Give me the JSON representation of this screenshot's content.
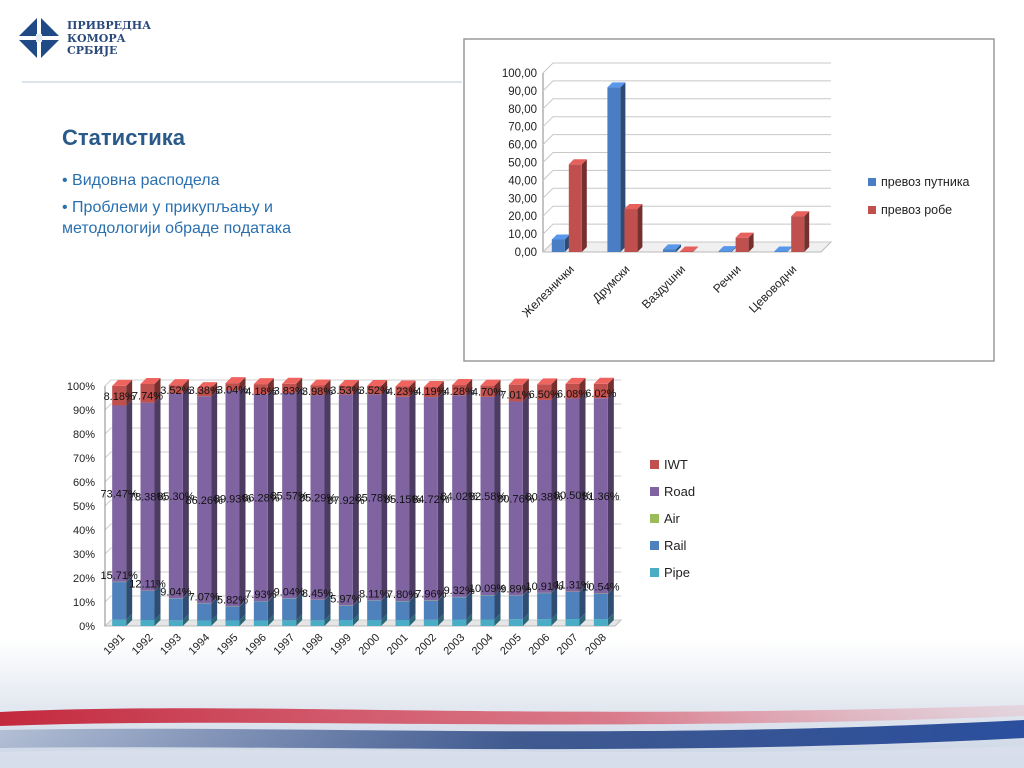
{
  "header": {
    "logo_lines": [
      "ПРИВРЕДНА",
      "КОМОРА",
      "СРБИЈЕ"
    ]
  },
  "slide": {
    "title": "Статистика",
    "bullets": [
      "• Видовна расподела",
      "• Проблеми у прикупљању и методологији обраде података"
    ]
  },
  "colors": {
    "title": "#2a5a8a",
    "bullet": "#2a6fae",
    "stripe_red": "#c0142a",
    "stripe_blue": "#1c3a7a"
  },
  "chart_data": [
    {
      "type": "bar",
      "categories": [
        "Железнички",
        "Друмски",
        "Ваздушни",
        "Речни",
        "Цевоводни"
      ],
      "series": [
        {
          "name": "превоз путника",
          "color": "#4a7ec4",
          "values": [
            7,
            92,
            1.5,
            0.5,
            0.3
          ]
        },
        {
          "name": "превоз робе",
          "color": "#c0504d",
          "values": [
            49,
            24,
            0.3,
            8,
            20
          ]
        }
      ],
      "ylim": [
        0,
        100
      ],
      "yticks": [
        "0,00",
        "10,00",
        "20,00",
        "30,00",
        "40,00",
        "50,00",
        "60,00",
        "70,00",
        "80,00",
        "90,00",
        "100,00"
      ],
      "legend_position": "right",
      "grid": true
    },
    {
      "type": "bar",
      "stacked": true,
      "categories": [
        "1991",
        "1992",
        "1993",
        "1994",
        "1995",
        "1996",
        "1997",
        "1998",
        "1999",
        "2000",
        "2001",
        "2002",
        "2003",
        "2004",
        "2005",
        "2006",
        "2007",
        "2008"
      ],
      "series": [
        {
          "name": "Pipe",
          "color": "#4bacc6",
          "values": [
            2.6,
            2.5,
            2.4,
            2.3,
            2.3,
            2.3,
            2.4,
            2.4,
            2.5,
            2.5,
            2.5,
            2.6,
            2.7,
            2.7,
            2.8,
            2.8,
            2.9,
            2.9
          ]
        },
        {
          "name": "Rail",
          "color": "#4f81bd",
          "values": [
            15.71,
            12.11,
            9.04,
            7.07,
            5.82,
            7.93,
            9.04,
            8.45,
            5.97,
            8.11,
            7.8,
            7.96,
            9.32,
            10.09,
            9.89,
            10.91,
            11.31,
            10.54
          ]
        },
        {
          "name": "Air",
          "color": "#9bbb59",
          "values": [
            0.1,
            0.1,
            0.1,
            0.1,
            0.1,
            0.1,
            0.1,
            0.1,
            0.1,
            0.1,
            0.1,
            0.1,
            0.1,
            0.1,
            0.1,
            0.1,
            0.1,
            0.1
          ]
        },
        {
          "name": "Road",
          "color": "#8064a2",
          "values": [
            73.47,
            78.38,
            85.3,
            86.26,
            89.93,
            86.28,
            85.57,
            85.29,
            87.92,
            85.78,
            85.15,
            84.72,
            84.02,
            82.58,
            80.76,
            80.38,
            80.5,
            81.36
          ]
        },
        {
          "name": "IWT",
          "color": "#c0504d",
          "values": [
            8.18,
            7.74,
            3.52,
            3.38,
            3.04,
            4.18,
            3.83,
            3.98,
            3.53,
            3.52,
            4.23,
            4.19,
            4.28,
            4.7,
            7.01,
            6.5,
            6.08,
            6.02
          ]
        }
      ],
      "labels": {
        "Rail": [
          "15.71%",
          "12.11%",
          "9.04%",
          "7.07%",
          "5.82%",
          "7.93%",
          "9.04%",
          "8.45%",
          "5.97%",
          "8.11%",
          "7.80%",
          "7.96%",
          "9.32%",
          "10.09%",
          "9.89%",
          "10.91%",
          "11.31%",
          "10.54%"
        ],
        "Road": [
          "73.47%",
          "78.38%",
          "85.30%",
          "86.26%",
          "89.93%",
          "86.28%",
          "85.57%",
          "85.29%",
          "87.92%",
          "85.78%",
          "85.15%",
          "84.72%",
          "84.02%",
          "82.58%",
          "80.76%",
          "80.38%",
          "80.50%",
          "81.36%"
        ],
        "IWT": [
          "8.18%",
          "7.74%",
          "3.52%",
          "3.38%",
          "3.04%",
          "4.18%",
          "3.83%",
          "3.98%",
          "3.53%",
          "3.52%",
          "4.23%",
          "4.19%",
          "4.28%",
          "4.70%",
          "7.01%",
          "6.50%",
          "6.08%",
          "6.02%"
        ]
      },
      "ylim": [
        0,
        100
      ],
      "yticks": [
        "0%",
        "10%",
        "20%",
        "30%",
        "40%",
        "50%",
        "60%",
        "70%",
        "80%",
        "90%",
        "100%"
      ],
      "legend_order": [
        "IWT",
        "Road",
        "Air",
        "Rail",
        "Pipe"
      ],
      "legend_position": "right",
      "grid": true
    }
  ]
}
